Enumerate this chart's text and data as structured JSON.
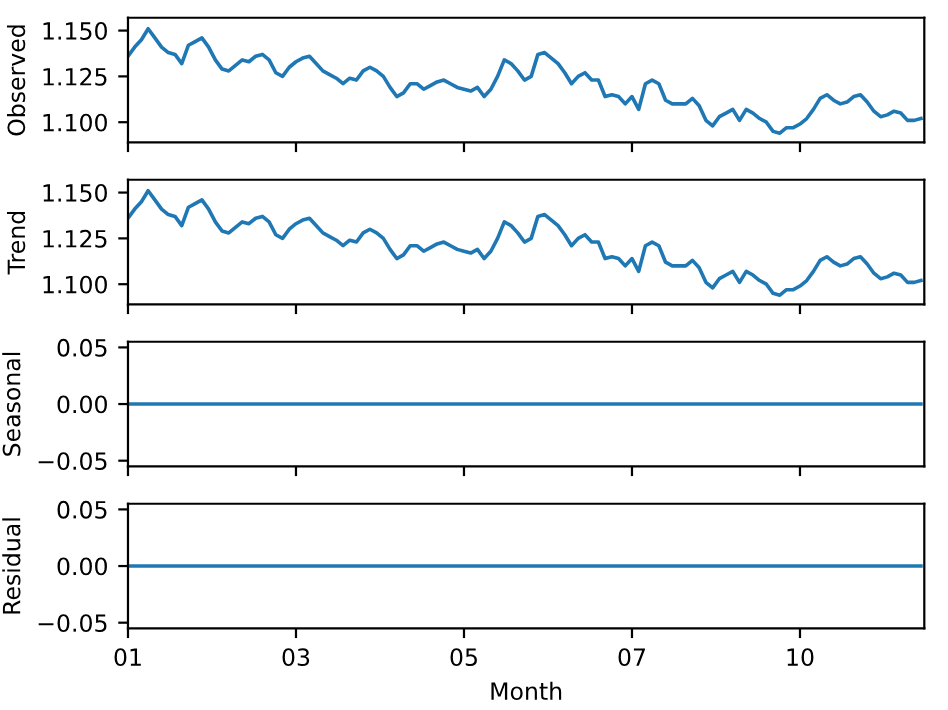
{
  "chart_data": [
    {
      "type": "line",
      "ylabel": "Observed",
      "categories": [
        "01",
        null,
        null,
        null,
        null,
        null,
        null,
        null,
        null,
        null,
        null,
        null,
        null,
        null,
        null,
        null,
        null,
        null,
        null,
        null,
        null,
        null,
        null,
        null,
        null,
        "03",
        null,
        null,
        null,
        null,
        null,
        null,
        null,
        null,
        null,
        null,
        null,
        null,
        null,
        null,
        null,
        null,
        null,
        null,
        null,
        null,
        null,
        null,
        null,
        null,
        "05",
        null,
        null,
        null,
        null,
        null,
        null,
        null,
        null,
        null,
        null,
        null,
        null,
        null,
        null,
        null,
        null,
        null,
        null,
        null,
        null,
        null,
        null,
        null,
        null,
        "07",
        null,
        null,
        null,
        null,
        null,
        null,
        null,
        null,
        null,
        null,
        null,
        null,
        null,
        null,
        null,
        null,
        null,
        null,
        null,
        null,
        null,
        null,
        null,
        null,
        "10",
        null,
        null,
        null,
        null,
        null,
        null,
        null,
        null,
        null,
        null,
        null,
        null,
        null,
        null,
        null,
        null,
        null,
        null
      ],
      "series": [
        {
          "color": "#1f77b4",
          "values": [
            1.136,
            1.141,
            1.145,
            1.151,
            1.146,
            1.141,
            1.138,
            1.137,
            1.132,
            1.142,
            1.144,
            1.146,
            1.141,
            1.134,
            1.129,
            1.128,
            1.131,
            1.134,
            1.133,
            1.136,
            1.137,
            1.134,
            1.127,
            1.125,
            1.13,
            1.133,
            1.135,
            1.136,
            1.132,
            1.128,
            1.126,
            1.124,
            1.121,
            1.124,
            1.123,
            1.128,
            1.13,
            1.128,
            1.125,
            1.119,
            1.114,
            1.116,
            1.121,
            1.121,
            1.118,
            1.12,
            1.122,
            1.123,
            1.121,
            1.119,
            1.118,
            1.117,
            1.119,
            1.114,
            1.118,
            1.125,
            1.134,
            1.132,
            1.128,
            1.123,
            1.125,
            1.137,
            1.138,
            1.135,
            1.132,
            1.127,
            1.121,
            1.125,
            1.127,
            1.123,
            1.123,
            1.114,
            1.115,
            1.114,
            1.11,
            1.114,
            1.107,
            1.121,
            1.123,
            1.121,
            1.112,
            1.11,
            1.11,
            1.11,
            1.113,
            1.109,
            1.101,
            1.098,
            1.103,
            1.105,
            1.107,
            1.101,
            1.107,
            1.105,
            1.102,
            1.1,
            1.095,
            1.094,
            1.097,
            1.097,
            1.099,
            1.102,
            1.107,
            1.113,
            1.115,
            1.112,
            1.11,
            1.111,
            1.114,
            1.115,
            1.111,
            1.106,
            1.103,
            1.104,
            1.106,
            1.105,
            1.101,
            1.101,
            1.102
          ]
        }
      ],
      "ylim": [
        1.089,
        1.157
      ],
      "yticks": [
        {
          "value": 1.1,
          "label": "1.100"
        },
        {
          "value": 1.125,
          "label": "1.125"
        },
        {
          "value": 1.15,
          "label": "1.150"
        }
      ],
      "tick_labels": "y"
    },
    {
      "type": "line",
      "ylabel": "Trend",
      "categories": [
        "01",
        null,
        null,
        null,
        null,
        null,
        null,
        null,
        null,
        null,
        null,
        null,
        null,
        null,
        null,
        null,
        null,
        null,
        null,
        null,
        null,
        null,
        null,
        null,
        null,
        "03",
        null,
        null,
        null,
        null,
        null,
        null,
        null,
        null,
        null,
        null,
        null,
        null,
        null,
        null,
        null,
        null,
        null,
        null,
        null,
        null,
        null,
        null,
        null,
        null,
        "05",
        null,
        null,
        null,
        null,
        null,
        null,
        null,
        null,
        null,
        null,
        null,
        null,
        null,
        null,
        null,
        null,
        null,
        null,
        null,
        null,
        null,
        null,
        null,
        null,
        "07",
        null,
        null,
        null,
        null,
        null,
        null,
        null,
        null,
        null,
        null,
        null,
        null,
        null,
        null,
        null,
        null,
        null,
        null,
        null,
        null,
        null,
        null,
        null,
        null,
        "10",
        null,
        null,
        null,
        null,
        null,
        null,
        null,
        null,
        null,
        null,
        null,
        null,
        null,
        null,
        null,
        null,
        null,
        null
      ],
      "series": [
        {
          "color": "#1f77b4",
          "values": [
            1.136,
            1.141,
            1.145,
            1.151,
            1.146,
            1.141,
            1.138,
            1.137,
            1.132,
            1.142,
            1.144,
            1.146,
            1.141,
            1.134,
            1.129,
            1.128,
            1.131,
            1.134,
            1.133,
            1.136,
            1.137,
            1.134,
            1.127,
            1.125,
            1.13,
            1.133,
            1.135,
            1.136,
            1.132,
            1.128,
            1.126,
            1.124,
            1.121,
            1.124,
            1.123,
            1.128,
            1.13,
            1.128,
            1.125,
            1.119,
            1.114,
            1.116,
            1.121,
            1.121,
            1.118,
            1.12,
            1.122,
            1.123,
            1.121,
            1.119,
            1.118,
            1.117,
            1.119,
            1.114,
            1.118,
            1.125,
            1.134,
            1.132,
            1.128,
            1.123,
            1.125,
            1.137,
            1.138,
            1.135,
            1.132,
            1.127,
            1.121,
            1.125,
            1.127,
            1.123,
            1.123,
            1.114,
            1.115,
            1.114,
            1.11,
            1.114,
            1.107,
            1.121,
            1.123,
            1.121,
            1.112,
            1.11,
            1.11,
            1.11,
            1.113,
            1.109,
            1.101,
            1.098,
            1.103,
            1.105,
            1.107,
            1.101,
            1.107,
            1.105,
            1.102,
            1.1,
            1.095,
            1.094,
            1.097,
            1.097,
            1.099,
            1.102,
            1.107,
            1.113,
            1.115,
            1.112,
            1.11,
            1.111,
            1.114,
            1.115,
            1.111,
            1.106,
            1.103,
            1.104,
            1.106,
            1.105,
            1.101,
            1.101,
            1.102
          ]
        }
      ],
      "ylim": [
        1.089,
        1.157
      ],
      "yticks": [
        {
          "value": 1.1,
          "label": "1.100"
        },
        {
          "value": 1.125,
          "label": "1.125"
        },
        {
          "value": 1.15,
          "label": "1.150"
        }
      ],
      "tick_labels": "y"
    },
    {
      "type": "line",
      "ylabel": "Seasonal",
      "categories": [
        "01",
        null,
        null,
        null,
        null,
        null,
        null,
        null,
        null,
        null,
        null,
        null,
        null,
        null,
        null,
        null,
        null,
        null,
        null,
        null,
        null,
        null,
        null,
        null,
        null,
        "03",
        null,
        null,
        null,
        null,
        null,
        null,
        null,
        null,
        null,
        null,
        null,
        null,
        null,
        null,
        null,
        null,
        null,
        null,
        null,
        null,
        null,
        null,
        null,
        null,
        "05",
        null,
        null,
        null,
        null,
        null,
        null,
        null,
        null,
        null,
        null,
        null,
        null,
        null,
        null,
        null,
        null,
        null,
        null,
        null,
        null,
        null,
        null,
        null,
        null,
        "07",
        null,
        null,
        null,
        null,
        null,
        null,
        null,
        null,
        null,
        null,
        null,
        null,
        null,
        null,
        null,
        null,
        null,
        null,
        null,
        null,
        null,
        null,
        null,
        null,
        "10",
        null,
        null,
        null,
        null,
        null,
        null,
        null,
        null,
        null,
        null,
        null,
        null,
        null,
        null,
        null,
        null,
        null,
        null
      ],
      "series": [
        {
          "color": "#1f77b4",
          "values": [
            0,
            0,
            0,
            0,
            0,
            0,
            0,
            0,
            0,
            0,
            0,
            0,
            0,
            0,
            0,
            0,
            0,
            0,
            0,
            0,
            0,
            0,
            0,
            0,
            0,
            0,
            0,
            0,
            0,
            0,
            0,
            0,
            0,
            0,
            0,
            0,
            0,
            0,
            0,
            0,
            0,
            0,
            0,
            0,
            0,
            0,
            0,
            0,
            0,
            0,
            0,
            0,
            0,
            0,
            0,
            0,
            0,
            0,
            0,
            0,
            0,
            0,
            0,
            0,
            0,
            0,
            0,
            0,
            0,
            0,
            0,
            0,
            0,
            0,
            0,
            0,
            0,
            0,
            0,
            0,
            0,
            0,
            0,
            0,
            0,
            0,
            0,
            0,
            0,
            0,
            0,
            0,
            0,
            0,
            0,
            0,
            0,
            0,
            0,
            0,
            0,
            0,
            0,
            0,
            0,
            0,
            0,
            0,
            0,
            0,
            0,
            0,
            0,
            0,
            0,
            0,
            0,
            0,
            0
          ]
        }
      ],
      "ylim": [
        -0.055,
        0.055
      ],
      "yticks": [
        {
          "value": -0.05,
          "label": "−0.05"
        },
        {
          "value": 0,
          "label": "0.00"
        },
        {
          "value": 0.05,
          "label": "0.05"
        }
      ],
      "tick_labels": "y"
    },
    {
      "type": "line",
      "ylabel": "Residual",
      "xlabel": "Month",
      "categories": [
        "01",
        null,
        null,
        null,
        null,
        null,
        null,
        null,
        null,
        null,
        null,
        null,
        null,
        null,
        null,
        null,
        null,
        null,
        null,
        null,
        null,
        null,
        null,
        null,
        null,
        "03",
        null,
        null,
        null,
        null,
        null,
        null,
        null,
        null,
        null,
        null,
        null,
        null,
        null,
        null,
        null,
        null,
        null,
        null,
        null,
        null,
        null,
        null,
        null,
        null,
        "05",
        null,
        null,
        null,
        null,
        null,
        null,
        null,
        null,
        null,
        null,
        null,
        null,
        null,
        null,
        null,
        null,
        null,
        null,
        null,
        null,
        null,
        null,
        null,
        null,
        "07",
        null,
        null,
        null,
        null,
        null,
        null,
        null,
        null,
        null,
        null,
        null,
        null,
        null,
        null,
        null,
        null,
        null,
        null,
        null,
        null,
        null,
        null,
        null,
        null,
        "10",
        null,
        null,
        null,
        null,
        null,
        null,
        null,
        null,
        null,
        null,
        null,
        null,
        null,
        null,
        null,
        null,
        null,
        null
      ],
      "series": [
        {
          "color": "#1f77b4",
          "values": [
            0,
            0,
            0,
            0,
            0,
            0,
            0,
            0,
            0,
            0,
            0,
            0,
            0,
            0,
            0,
            0,
            0,
            0,
            0,
            0,
            0,
            0,
            0,
            0,
            0,
            0,
            0,
            0,
            0,
            0,
            0,
            0,
            0,
            0,
            0,
            0,
            0,
            0,
            0,
            0,
            0,
            0,
            0,
            0,
            0,
            0,
            0,
            0,
            0,
            0,
            0,
            0,
            0,
            0,
            0,
            0,
            0,
            0,
            0,
            0,
            0,
            0,
            0,
            0,
            0,
            0,
            0,
            0,
            0,
            0,
            0,
            0,
            0,
            0,
            0,
            0,
            0,
            0,
            0,
            0,
            0,
            0,
            0,
            0,
            0,
            0,
            0,
            0,
            0,
            0,
            0,
            0,
            0,
            0,
            0,
            0,
            0,
            0,
            0,
            0,
            0,
            0,
            0,
            0,
            0,
            0,
            0,
            0,
            0,
            0,
            0,
            0,
            0,
            0,
            0,
            0,
            0,
            0,
            0
          ]
        }
      ],
      "ylim": [
        -0.055,
        0.055
      ],
      "yticks": [
        {
          "value": -0.05,
          "label": "−0.05"
        },
        {
          "value": 0,
          "label": "0.00"
        },
        {
          "value": 0.05,
          "label": "0.05"
        }
      ]
    }
  ]
}
